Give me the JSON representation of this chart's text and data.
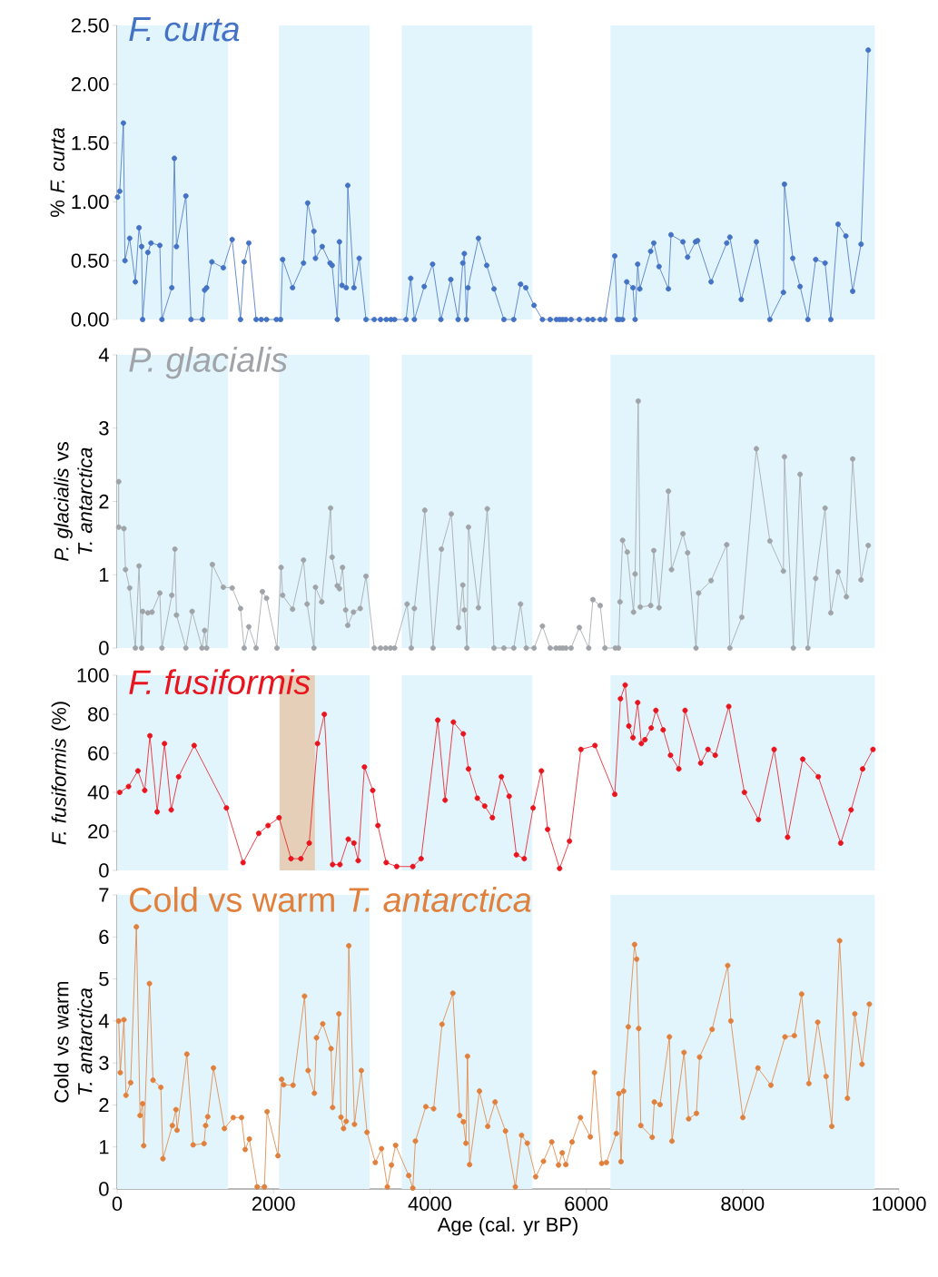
{
  "chart_data": [
    {
      "type": "line",
      "title": "*F. curta*",
      "ylabel": "% *F. curta*",
      "marker": "circle",
      "tick_labels": "y",
      "xlim": [
        0,
        10000
      ],
      "ylim": [
        0,
        2.5
      ],
      "yticks": [
        {
          "value": 0,
          "label": "0.00"
        },
        {
          "value": 0.5,
          "label": "0.50"
        },
        {
          "value": 1,
          "label": "1.00"
        },
        {
          "value": 1.5,
          "label": "1.50"
        },
        {
          "value": 2,
          "label": "2.00"
        },
        {
          "value": 2.5,
          "label": "2.50"
        }
      ],
      "bands": [
        {
          "axis": "x",
          "from": 0,
          "to": 1420,
          "color": "#e3f5fc"
        },
        {
          "axis": "x",
          "from": 2070,
          "to": 3230,
          "color": "#e3f5fc"
        },
        {
          "axis": "x",
          "from": 3640,
          "to": 5310,
          "color": "#e3f5fc"
        },
        {
          "axis": "x",
          "from": 6310,
          "to": 9690,
          "color": "#e3f5fc"
        }
      ],
      "x": [
        5,
        33,
        80,
        100,
        160,
        233,
        280,
        313,
        326,
        393,
        433,
        546,
        573,
        699,
        732,
        759,
        879,
        945,
        1092,
        1119,
        1145,
        1212,
        1358,
        1471,
        1578,
        1625,
        1684,
        1778,
        1844,
        1911,
        2037,
        2091,
        2117,
        2244,
        2384,
        2437,
        2517,
        2537,
        2623,
        2723,
        2750,
        2816,
        2843,
        2876,
        2930,
        2950,
        3029,
        3096,
        3183,
        3289,
        3369,
        3442,
        3502,
        3549,
        3695,
        3755,
        3802,
        3928,
        4035,
        4141,
        4268,
        4361,
        4421,
        4441,
        4468,
        4488,
        4621,
        4727,
        4820,
        4947,
        5073,
        5160,
        5227,
        5333,
        5440,
        5539,
        5619,
        5659,
        5699,
        5739,
        5806,
        5912,
        6019,
        6085,
        6179,
        6239,
        6365,
        6398,
        6425,
        6465,
        6518,
        6598,
        6625,
        6658,
        6685,
        6824,
        6864,
        6931,
        7051,
        7084,
        7237,
        7297,
        7397,
        7424,
        7597,
        7797,
        7837,
        7983,
        8176,
        8349,
        8522,
        8535,
        8642,
        8735,
        8835,
        8935,
        9055,
        9128,
        9221,
        9321,
        9408,
        9515,
        9607
      ],
      "series": [
        {
          "color": "#4472c4",
          "values": [
            1.04,
            1.09,
            1.67,
            0.5,
            0.69,
            0.32,
            0.78,
            0.62,
            0,
            0.57,
            0.65,
            0.63,
            0,
            0.27,
            1.37,
            0.62,
            1.05,
            0,
            0,
            0.25,
            0.27,
            0.49,
            0.44,
            0.68,
            0,
            0.49,
            0.65,
            0,
            0,
            0,
            0,
            0,
            0.51,
            0.27,
            0.48,
            0.99,
            0.75,
            0.52,
            0.62,
            0.48,
            0.46,
            0,
            0.66,
            0.29,
            0.27,
            1.14,
            0.27,
            0.52,
            0,
            0,
            0,
            0,
            0,
            0,
            0,
            0.35,
            0,
            0.28,
            0.47,
            0,
            0.34,
            0,
            0.48,
            0.56,
            0,
            0.27,
            0.69,
            0.46,
            0.26,
            0,
            0,
            0.3,
            0.27,
            0.12,
            0,
            0,
            0,
            0,
            0,
            0,
            0,
            0,
            0,
            0,
            0,
            0,
            0.54,
            0,
            0,
            0,
            0.32,
            0.27,
            0,
            0.47,
            0.26,
            0.58,
            0.65,
            0.45,
            0.26,
            0.72,
            0.66,
            0.53,
            0.66,
            0.67,
            0.32,
            0.65,
            0.7,
            0.17,
            0.66,
            0,
            0.23,
            1.15,
            0.52,
            0.28,
            0,
            0.51,
            0.48,
            0,
            0.81,
            0.71,
            0.24,
            0.64,
            2.29
          ]
        }
      ]
    },
    {
      "type": "line",
      "title": "*P. glacialis*",
      "ylabel": "*P. glacialis* vs *T. antarctica*",
      "marker": "circle",
      "tick_labels": "y",
      "xlim": [
        0,
        10000
      ],
      "ylim": [
        0,
        4
      ],
      "yticks": [
        0,
        1,
        2,
        3,
        4
      ],
      "bands": [
        {
          "axis": "x",
          "from": 0,
          "to": 1420,
          "color": "#e3f5fc"
        },
        {
          "axis": "x",
          "from": 2070,
          "to": 3230,
          "color": "#e3f5fc"
        },
        {
          "axis": "x",
          "from": 3640,
          "to": 5310,
          "color": "#e3f5fc"
        },
        {
          "axis": "x",
          "from": 6310,
          "to": 9690,
          "color": "#e3f5fc"
        }
      ],
      "x": [
        20,
        20,
        87,
        107,
        160,
        233,
        280,
        313,
        326,
        393,
        446,
        546,
        573,
        699,
        739,
        759,
        879,
        959,
        1085,
        1119,
        1145,
        1218,
        1358,
        1471,
        1578,
        1625,
        1684,
        1778,
        1858,
        1911,
        2044,
        2097,
        2117,
        2244,
        2384,
        2430,
        2517,
        2537,
        2617,
        2730,
        2750,
        2816,
        2843,
        2883,
        2923,
        2950,
        3023,
        3109,
        3183,
        3289,
        3369,
        3436,
        3496,
        3549,
        3709,
        3762,
        3802,
        3935,
        4041,
        4148,
        4274,
        4368,
        4421,
        4441,
        4474,
        4494,
        4621,
        4734,
        4820,
        4947,
        5073,
        5160,
        5233,
        5333,
        5440,
        5539,
        5613,
        5659,
        5699,
        5739,
        5806,
        5912,
        6032,
        6085,
        6179,
        6239,
        6372,
        6412,
        6432,
        6465,
        6525,
        6605,
        6625,
        6665,
        6691,
        6824,
        6864,
        6931,
        7051,
        7091,
        7237,
        7297,
        7404,
        7437,
        7597,
        7797,
        7837,
        7990,
        8176,
        8349,
        8522,
        8535,
        8649,
        8735,
        8835,
        8935,
        9055,
        9128,
        9221,
        9328,
        9408,
        9515,
        9607
      ],
      "series": [
        {
          "color": "#a0a4a8",
          "values": [
            2.27,
            1.65,
            1.63,
            1.07,
            0.82,
            0,
            1.12,
            0,
            0.5,
            0.48,
            0.49,
            0.75,
            0,
            0.72,
            1.35,
            0.45,
            0,
            0.5,
            0,
            0.24,
            0,
            1.14,
            0.83,
            0.82,
            0.54,
            0,
            0.29,
            0,
            0.77,
            0.68,
            0,
            1.1,
            0.72,
            0.53,
            1.2,
            0.6,
            0,
            0.83,
            0.63,
            1.91,
            1.24,
            0.85,
            0.81,
            1.1,
            0.52,
            0.31,
            0.49,
            0.54,
            0.98,
            0,
            0,
            0,
            0,
            0,
            0.6,
            0,
            0.54,
            1.88,
            0,
            1.35,
            1.83,
            0.28,
            0.86,
            0.52,
            0,
            1.65,
            0.55,
            1.9,
            0,
            0,
            0,
            0.6,
            0,
            0,
            0.3,
            0,
            0,
            0,
            0,
            0,
            0,
            0.28,
            0,
            0.66,
            0.58,
            0,
            0,
            0,
            0.63,
            1.47,
            1.31,
            0.49,
            1.01,
            3.37,
            0.56,
            0.58,
            1.33,
            0.55,
            2.14,
            1.07,
            1.56,
            1.3,
            0,
            0.75,
            0.92,
            1.41,
            0,
            0.42,
            2.72,
            1.46,
            1.05,
            2.61,
            0,
            2.37,
            0,
            0.95,
            1.91,
            0.48,
            1.04,
            0.7,
            2.58,
            0.93,
            1.4
          ]
        }
      ]
    },
    {
      "type": "line",
      "title": "*F. fusiformis*",
      "ylabel": "*F. fusiformis* (%)",
      "marker": "circle",
      "tick_labels": "y",
      "xlim": [
        0,
        10000
      ],
      "ylim": [
        0,
        100
      ],
      "yticks": [
        0,
        20,
        40,
        60,
        80,
        100
      ],
      "bands": [
        {
          "axis": "x",
          "from": 0,
          "to": 1420,
          "color": "#e3f5fc"
        },
        {
          "axis": "x",
          "from": 2070,
          "to": 3230,
          "color": "#e3f5fc"
        },
        {
          "axis": "x",
          "from": 3640,
          "to": 5310,
          "color": "#e3f5fc"
        },
        {
          "axis": "x",
          "from": 6310,
          "to": 9690,
          "color": "#e3f5fc"
        },
        {
          "axis": "x",
          "from": 2080,
          "to": 2530,
          "color": "#e6cfb8"
        }
      ],
      "x": [
        33,
        146,
        266,
        353,
        419,
        512,
        606,
        692,
        786,
        985,
        1398,
        1611,
        1811,
        1931,
        2071,
        2224,
        2350,
        2457,
        2563,
        2650,
        2756,
        2850,
        2956,
        3029,
        3083,
        3163,
        3269,
        3336,
        3442,
        3575,
        3782,
        3888,
        4101,
        4195,
        4301,
        4428,
        4494,
        4607,
        4701,
        4800,
        4914,
        5014,
        5107,
        5207,
        5320,
        5427,
        5506,
        5659,
        5786,
        5932,
        6112,
        6365,
        6438,
        6498,
        6545,
        6598,
        6658,
        6705,
        6751,
        6831,
        6891,
        6984,
        7078,
        7184,
        7264,
        7464,
        7557,
        7650,
        7823,
        8023,
        8203,
        8403,
        8576,
        8769,
        8968,
        9255,
        9388,
        9535,
        9668
      ],
      "series": [
        {
          "color": "#e8141e",
          "values": [
            40,
            43,
            51,
            41,
            69,
            30,
            65,
            31,
            48,
            64,
            32,
            4,
            19,
            23,
            27,
            6,
            6,
            14,
            65,
            80,
            3,
            3,
            16,
            14,
            5,
            53,
            41,
            23,
            4,
            2,
            2,
            6,
            77,
            36,
            76,
            70,
            52,
            37,
            33,
            27,
            48,
            38,
            8,
            6,
            32,
            51,
            21,
            1,
            15,
            62,
            64,
            39,
            88,
            95,
            74,
            68,
            86,
            65,
            67,
            73,
            82,
            72,
            59,
            52,
            82,
            55,
            62,
            59,
            84,
            40,
            26,
            62,
            17,
            57,
            48,
            14,
            31,
            52,
            62
          ]
        }
      ]
    },
    {
      "type": "line",
      "title": "Cold vs warm *T. antarctica*",
      "ylabel": "Cold vs warm *T. antarctica*",
      "xlabel": "Age (cal. yr BP)",
      "marker": "circle",
      "xlim": [
        0,
        10000
      ],
      "ylim": [
        0,
        7
      ],
      "xticks": [
        0,
        2000,
        4000,
        6000,
        8000,
        10000
      ],
      "yticks": [
        0,
        1,
        2,
        3,
        4,
        5,
        6,
        7
      ],
      "bands": [
        {
          "axis": "x",
          "from": 0,
          "to": 1420,
          "color": "#e3f5fc"
        },
        {
          "axis": "x",
          "from": 2070,
          "to": 3230,
          "color": "#e3f5fc"
        },
        {
          "axis": "x",
          "from": 3640,
          "to": 5310,
          "color": "#e3f5fc"
        },
        {
          "axis": "x",
          "from": 6310,
          "to": 9690,
          "color": "#e3f5fc"
        }
      ],
      "x": [
        20,
        40,
        87,
        113,
        173,
        246,
        293,
        326,
        340,
        413,
        459,
        559,
        586,
        706,
        752,
        766,
        892,
        972,
        1112,
        1132,
        1159,
        1232,
        1372,
        1485,
        1591,
        1638,
        1691,
        1791,
        1884,
        1918,
        2057,
        2104,
        2130,
        2250,
        2397,
        2443,
        2523,
        2550,
        2630,
        2736,
        2756,
        2836,
        2863,
        2896,
        2930,
        2963,
        3036,
        3123,
        3196,
        3302,
        3382,
        3456,
        3509,
        3562,
        3729,
        3782,
        3815,
        3948,
        4048,
        4155,
        4294,
        4381,
        4428,
        4461,
        4481,
        4508,
        4634,
        4740,
        4834,
        4967,
        5093,
        5173,
        5246,
        5353,
        5453,
        5559,
        5646,
        5693,
        5739,
        5819,
        5926,
        6052,
        6105,
        6198,
        6258,
        6385,
        6418,
        6445,
        6478,
        6538,
        6618,
        6645,
        6671,
        6698,
        6844,
        6871,
        6944,
        7064,
        7097,
        7251,
        7310,
        7410,
        7450,
        7610,
        7810,
        7850,
        8003,
        8196,
        8362,
        8542,
        8662,
        8755,
        8848,
        8961,
        9068,
        9141,
        9241,
        9341,
        9435,
        9528,
        9621
      ],
      "series": [
        {
          "color": "#e0803c",
          "values": [
            4,
            2.77,
            4.03,
            2.23,
            2.53,
            6.24,
            1.75,
            2.03,
            1.03,
            4.89,
            2.59,
            2.42,
            0.72,
            1.51,
            1.89,
            1.4,
            3.21,
            1.05,
            1.08,
            1.51,
            1.72,
            2.88,
            1.44,
            1.7,
            1.7,
            0.94,
            1.19,
            0.05,
            0.05,
            1.84,
            0.79,
            2.61,
            2.48,
            2.47,
            4.59,
            2.82,
            2.28,
            3.6,
            3.93,
            3.34,
            1.94,
            4.17,
            1.71,
            1.44,
            1.61,
            5.79,
            1.54,
            2.82,
            1.35,
            0.63,
            0.96,
            0.05,
            0.57,
            1.04,
            0.32,
            0.02,
            1.14,
            1.96,
            1.91,
            3.92,
            4.66,
            1.75,
            1.6,
            1.09,
            3.16,
            0.58,
            2.33,
            1.49,
            2.07,
            1.38,
            0.05,
            1.28,
            1.09,
            0.29,
            0.66,
            1.12,
            0.57,
            0.86,
            0.58,
            1.12,
            1.7,
            1.24,
            2.77,
            0.61,
            0.63,
            1.32,
            2.27,
            0.65,
            2.33,
            3.86,
            5.82,
            5.47,
            3.82,
            1.51,
            1.23,
            2.07,
            2.01,
            3.62,
            1.14,
            3.25,
            1.67,
            1.8,
            3.14,
            3.8,
            5.32,
            4,
            1.7,
            2.88,
            2.47,
            3.62,
            3.65,
            4.64,
            2.51,
            3.97,
            2.68,
            1.49,
            5.91,
            2.16,
            4.17,
            2.97,
            4.4
          ]
        }
      ]
    }
  ]
}
